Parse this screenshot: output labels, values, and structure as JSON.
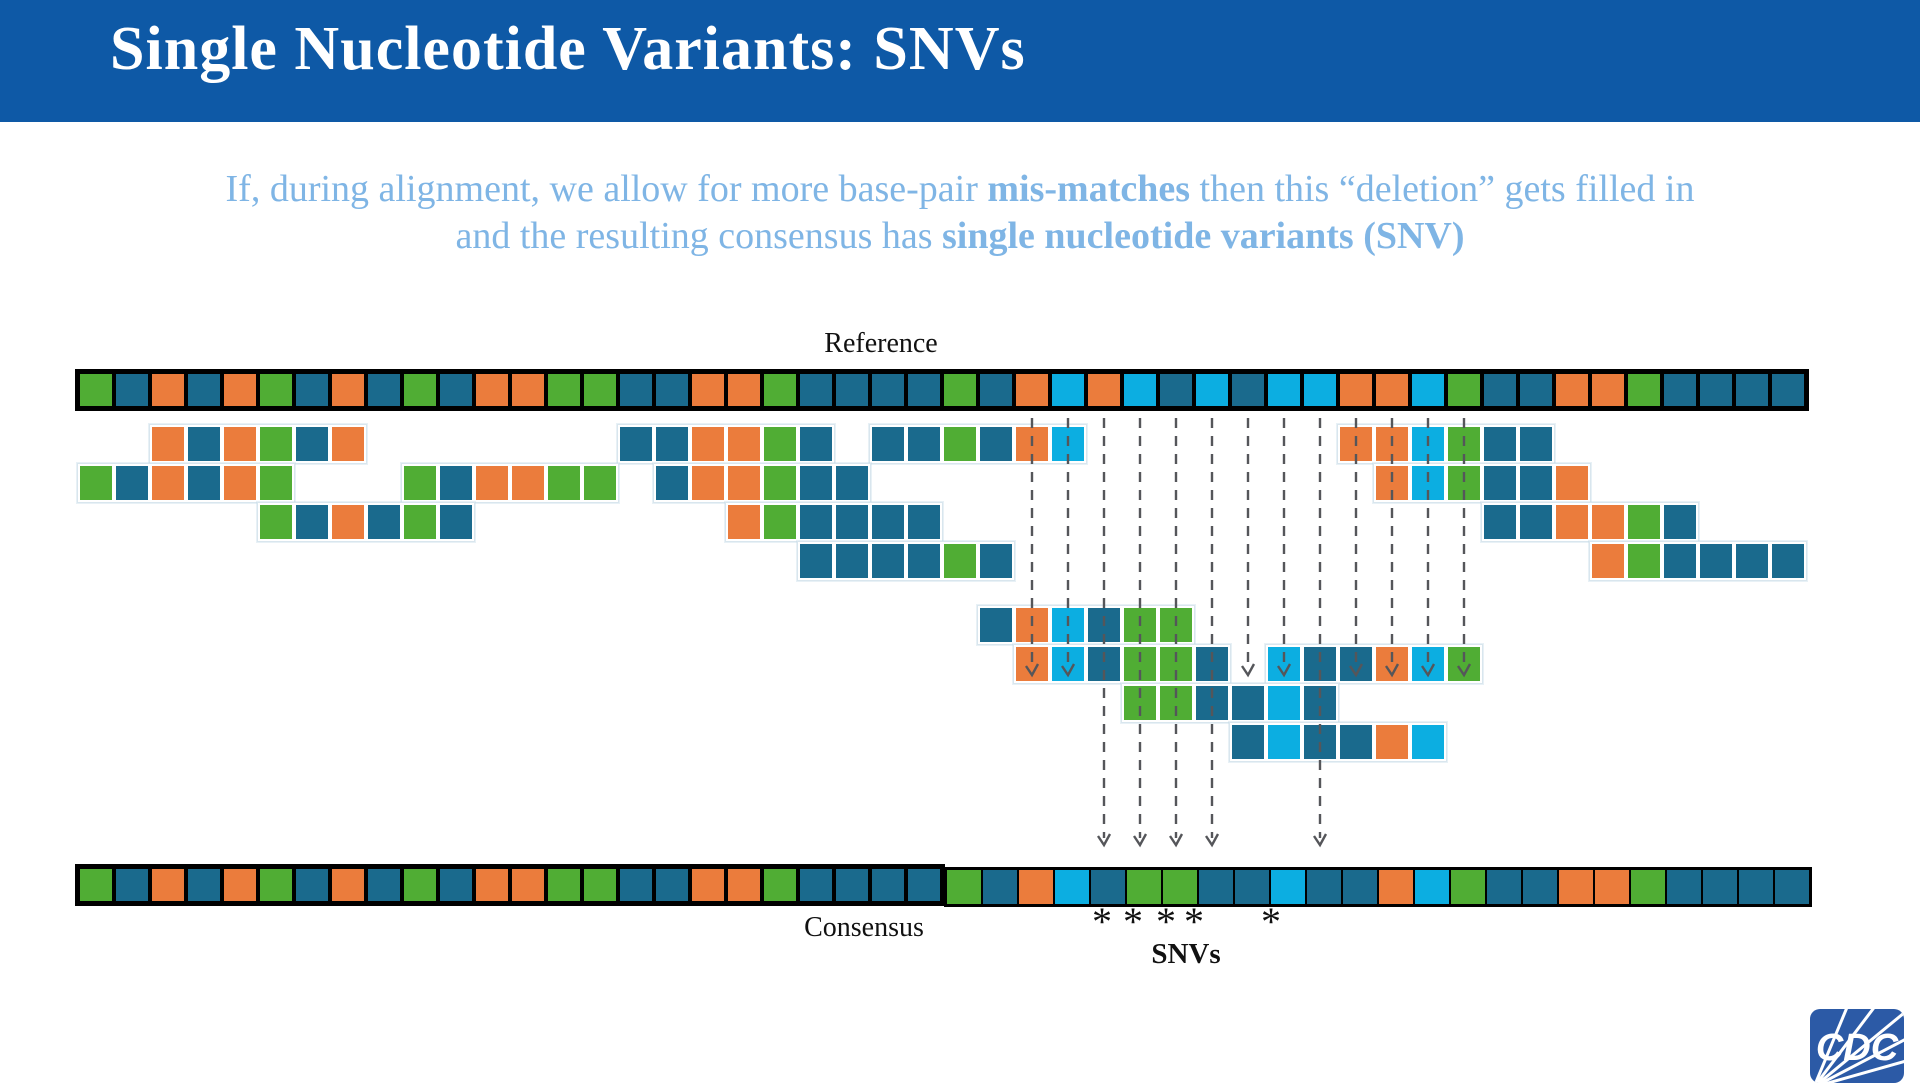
{
  "slide": {
    "title": "Single Nucleotide Variants: SNVs"
  },
  "subtitle": {
    "line1_pre": "If, during alignment, we allow for more base-pair ",
    "line1_bold": "mis-matches",
    "line1_post": " then this “deletion” gets filled in",
    "line2_pre": "and the resulting consensus has ",
    "line2_bold": "single nucleotide variants (SNV)"
  },
  "labels": {
    "reference": "Reference",
    "consensus": "Consensus",
    "snvs": "SNVs",
    "asterisk": "*"
  },
  "colors": {
    "teal": "#1A6A8D",
    "orange": "#EB7C3C",
    "green": "#50AD34",
    "cyan": "#0CAEE1",
    "header_bg": "#0E59A6",
    "subtitle_text": "#7FB5E5",
    "arrow_gray": "#55565A",
    "logo_blue": "#2C5AA6"
  },
  "alignment": {
    "color_key": {
      "T": "teal",
      "O": "orange",
      "G": "green",
      "C": "cyan"
    },
    "reference_sequence": "GTOTOGTOTGTOOGGTTOOGTTTTGTOCOCTCTCCOOCGTTOOGTTTT",
    "consensus_left": "GTOTOGTOTGTOOGGTTOOGTTTT",
    "consensus_right": "GTOCTGGTTCTTOCGTTOOGTTTT",
    "reads": [
      {
        "row": "A",
        "start": 3,
        "seq": "OTOGTO"
      },
      {
        "row": "A",
        "start": 16,
        "seq": "TTOOGT"
      },
      {
        "row": "A",
        "start": 23,
        "seq": "TTGTOC"
      },
      {
        "row": "A",
        "start": 36,
        "seq": "OOCGTT"
      },
      {
        "row": "B",
        "start": 1,
        "seq": "GTOTOG"
      },
      {
        "row": "B",
        "start": 10,
        "seq": "GTOOGG"
      },
      {
        "row": "B",
        "start": 17,
        "seq": "TOOGTT"
      },
      {
        "row": "B",
        "start": 37,
        "seq": "OCGTTO"
      },
      {
        "row": "C",
        "start": 6,
        "seq": "GTOTGT"
      },
      {
        "row": "C",
        "start": 19,
        "seq": "OGTTTT"
      },
      {
        "row": "C",
        "start": 40,
        "seq": "TTOOGT"
      },
      {
        "row": "D",
        "start": 21,
        "seq": "TTTTGT"
      },
      {
        "row": "D",
        "start": 43,
        "seq": "OGTTTT"
      },
      {
        "row": "E",
        "start": 26,
        "seq": "TOCTGG"
      },
      {
        "row": "F",
        "start": 27,
        "seq": "OCTGGT"
      },
      {
        "row": "F",
        "start": 34,
        "seq": "CTTOCG"
      },
      {
        "row": "G",
        "start": 30,
        "seq": "GGTTCT"
      },
      {
        "row": "H",
        "start": 33,
        "seq": "TCTTOC"
      }
    ],
    "arrows_short_squares": [
      27,
      28,
      33,
      34,
      36,
      37,
      38,
      39
    ],
    "arrows_long_squares": [
      29,
      30,
      31,
      32,
      35
    ],
    "snv_marker_x": [
      1102,
      1133,
      1166,
      1194,
      1271
    ]
  },
  "logo": {
    "text": "CDC"
  }
}
